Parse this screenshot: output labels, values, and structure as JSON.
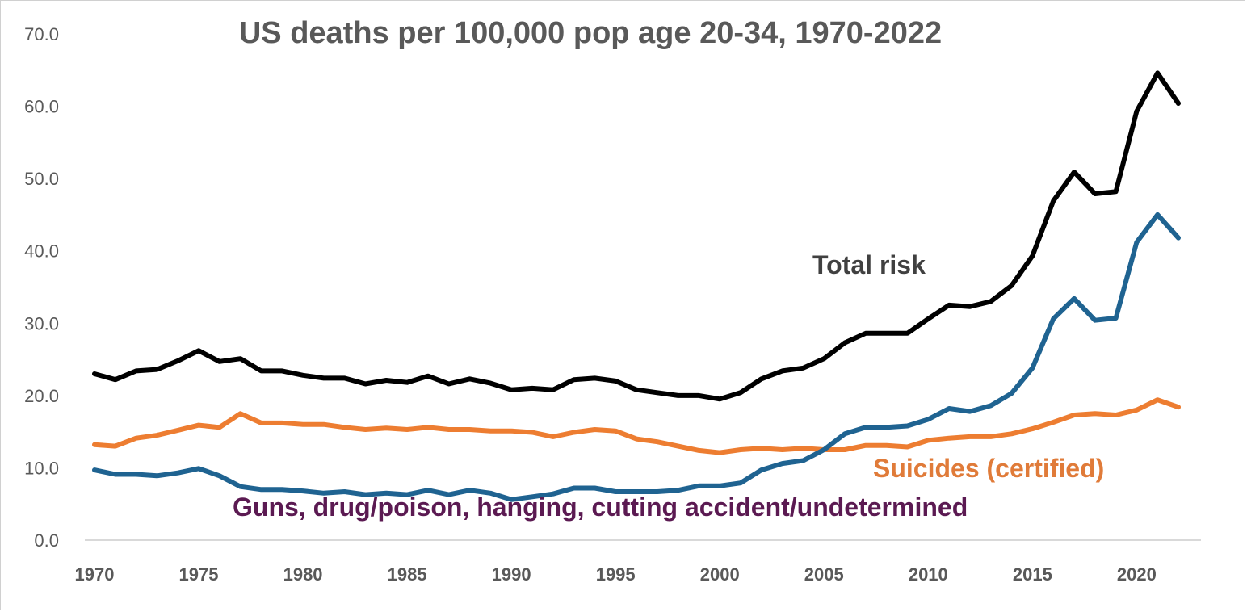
{
  "chart_data": {
    "type": "line",
    "title": "US deaths per 100,000 pop age 20-34, 1970-2022",
    "ylim": [
      0,
      70
    ],
    "yticks": [
      "0.0",
      "10.0",
      "20.0",
      "30.0",
      "40.0",
      "50.0",
      "60.0",
      "70.0"
    ],
    "xticks": [
      "1970",
      "1975",
      "1980",
      "1985",
      "1990",
      "1995",
      "2000",
      "2005",
      "2010",
      "2015",
      "2020"
    ],
    "xlim": [
      1970,
      2022
    ],
    "grid": "baseline only",
    "legend": "inline labels",
    "x": [
      1970,
      1971,
      1972,
      1973,
      1974,
      1975,
      1976,
      1977,
      1978,
      1979,
      1980,
      1981,
      1982,
      1983,
      1984,
      1985,
      1986,
      1987,
      1988,
      1989,
      1990,
      1991,
      1992,
      1993,
      1994,
      1995,
      1996,
      1997,
      1998,
      1999,
      2000,
      2001,
      2002,
      2003,
      2004,
      2005,
      2006,
      2007,
      2008,
      2009,
      2010,
      2011,
      2012,
      2013,
      2014,
      2015,
      2016,
      2017,
      2018,
      2019,
      2020,
      2021,
      2022
    ],
    "series": [
      {
        "name": "Total risk",
        "color": "#000000",
        "values": [
          23.0,
          22.2,
          23.4,
          23.6,
          24.8,
          26.2,
          24.7,
          25.1,
          23.4,
          23.4,
          22.8,
          22.4,
          22.4,
          21.6,
          22.1,
          21.8,
          22.7,
          21.6,
          22.3,
          21.7,
          20.8,
          21.0,
          20.8,
          22.2,
          22.4,
          22.0,
          20.8,
          20.4,
          20.0,
          20.0,
          19.5,
          20.4,
          22.3,
          23.4,
          23.8,
          25.1,
          27.3,
          28.6,
          28.6,
          28.6,
          30.6,
          32.5,
          32.3,
          33.0,
          35.2,
          39.3,
          46.9,
          50.9,
          47.9,
          48.2,
          59.3,
          64.6,
          60.4
        ]
      },
      {
        "name": "Suicides (certified)",
        "color": "#ed7d31",
        "values": [
          13.2,
          13.0,
          14.1,
          14.5,
          15.2,
          15.9,
          15.6,
          17.5,
          16.2,
          16.2,
          16.0,
          16.0,
          15.6,
          15.3,
          15.5,
          15.3,
          15.6,
          15.3,
          15.3,
          15.1,
          15.1,
          14.9,
          14.3,
          14.9,
          15.3,
          15.1,
          14.0,
          13.6,
          13.0,
          12.4,
          12.1,
          12.5,
          12.7,
          12.5,
          12.7,
          12.5,
          12.5,
          13.1,
          13.1,
          12.9,
          13.8,
          14.1,
          14.3,
          14.3,
          14.7,
          15.4,
          16.3,
          17.3,
          17.5,
          17.3,
          18.0,
          19.4,
          18.4
        ]
      },
      {
        "name": "Guns, drug/poison, hanging, cutting accident/undetermined",
        "color": "#1f6391",
        "values": [
          9.7,
          9.1,
          9.1,
          8.9,
          9.3,
          9.9,
          8.9,
          7.4,
          7.0,
          7.0,
          6.8,
          6.5,
          6.7,
          6.3,
          6.5,
          6.3,
          6.9,
          6.3,
          6.9,
          6.5,
          5.6,
          6.0,
          6.4,
          7.2,
          7.2,
          6.7,
          6.7,
          6.7,
          6.9,
          7.5,
          7.5,
          7.9,
          9.7,
          10.6,
          11.0,
          12.5,
          14.7,
          15.6,
          15.6,
          15.8,
          16.7,
          18.2,
          17.8,
          18.6,
          20.3,
          23.8,
          30.6,
          33.4,
          30.4,
          30.7,
          41.2,
          45.0,
          41.8
        ]
      }
    ],
    "annotations": {
      "total": "Total risk",
      "suicides": "Suicides (certified)",
      "guns": "Guns, drug/poison, hanging, cutting accident/undetermined"
    },
    "annotation_colors": {
      "total": "#404040",
      "suicides": "#e07b39",
      "guns": "#5b1a52"
    }
  }
}
